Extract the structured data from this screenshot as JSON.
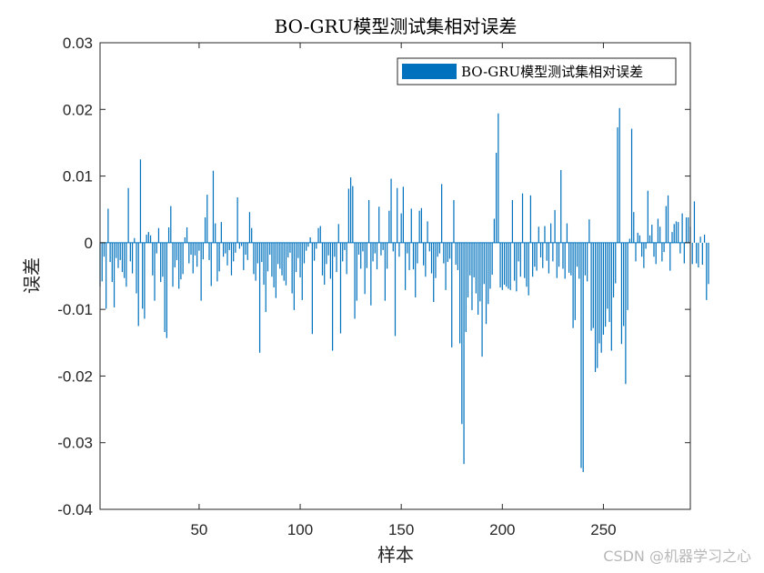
{
  "watermark": "CSDN @机器学习之心",
  "chart_data": {
    "type": "bar",
    "title": "BO-GRU模型测试集相对误差",
    "xlabel": "样本",
    "ylabel": "误差",
    "xlim": [
      1,
      293
    ],
    "ylim": [
      -0.04,
      0.03
    ],
    "xticks": [
      50,
      100,
      150,
      200,
      250
    ],
    "yticks": [
      -0.04,
      -0.03,
      -0.02,
      -0.01,
      0,
      0.01,
      0.02,
      0.03
    ],
    "ytick_labels": [
      "-0.04",
      "-0.03",
      "-0.02",
      "-0.01",
      "0",
      "0.01",
      "0.02",
      "0.03"
    ],
    "legend_position": "top-right",
    "grid": false,
    "color": "#0072BD",
    "series": [
      {
        "name": "BO-GRU模型测试集相对误差",
        "x_start": 1,
        "values": [
          -0.0066,
          -0.0058,
          -0.0021,
          -0.0099,
          0.0051,
          -0.0029,
          -0.0059,
          -0.0097,
          -0.0023,
          -0.0038,
          -0.0026,
          -0.0044,
          -0.0053,
          -0.0066,
          0.0082,
          -0.0028,
          -0.0046,
          0.0007,
          -0.0076,
          -0.0125,
          0.0125,
          -0.0099,
          -0.0114,
          0.0012,
          0.0016,
          0.0011,
          -0.0049,
          -0.0087,
          -0.0016,
          0.0022,
          -0.0059,
          -0.0051,
          -0.0134,
          -0.0143,
          0.0023,
          0.0055,
          -0.0066,
          -0.0037,
          -0.0026,
          -0.0069,
          -0.0055,
          -0.0047,
          0.0008,
          0.0023,
          -0.0031,
          -0.0018,
          -0.0046,
          -0.0019,
          -0.0036,
          -0.0012,
          -0.0087,
          -0.0025,
          0.0038,
          0.0072,
          -0.0026,
          -0.0065,
          0.0108,
          0.0029,
          -0.0058,
          -0.0043,
          0.0031,
          -0.0021,
          -0.0016,
          -0.0034,
          -0.0011,
          -0.0049,
          -0.0028,
          -0.0015,
          0.0068,
          -0.0009,
          -0.0005,
          -0.0041,
          -0.0018,
          -0.0026,
          0.0046,
          0.0022,
          -0.0047,
          -0.0057,
          -0.0031,
          -0.0165,
          -0.0029,
          -0.0063,
          -0.0104,
          -0.0043,
          -0.0018,
          -0.0051,
          -0.0067,
          -0.0083,
          -0.0032,
          -0.0039,
          -0.0049,
          -0.0057,
          -0.0064,
          -0.0022,
          -0.0015,
          -0.0076,
          -0.0101,
          -0.0044,
          -0.0023,
          -0.0052,
          -0.0086,
          -0.0031,
          -0.0012,
          -0.0006,
          0.0008,
          -0.0137,
          -0.0027,
          -0.0009,
          0.0022,
          0.0025,
          -0.0049,
          -0.0063,
          -0.0032,
          -0.0019,
          -0.0054,
          -0.0162,
          -0.0021,
          -0.0044,
          0.0028,
          -0.0136,
          -0.0028,
          -0.0011,
          -0.0047,
          0.0081,
          0.0098,
          0.0085,
          -0.0114,
          -0.0087,
          -0.0018,
          -0.0039,
          -0.0013,
          -0.0077,
          -0.0038,
          0.0064,
          -0.0094,
          -0.0028,
          -0.0016,
          -0.004,
          0.0054,
          -0.0019,
          -0.0011,
          -0.0087,
          -0.0039,
          0.0048,
          0.0096,
          -0.0013,
          -0.014,
          0.0082,
          -0.0021,
          0.0044,
          0.0084,
          -0.0071,
          -0.0016,
          -0.0041,
          0.0051,
          -0.004,
          -0.0082,
          -0.0031,
          0.0048,
          0.0052,
          -0.0034,
          -0.0051,
          0.0032,
          -0.0013,
          -0.0046,
          -0.0089,
          -0.0053,
          -0.0021,
          -0.0016,
          0.0088,
          -0.0031,
          -0.0071,
          -0.0029,
          -0.0024,
          -0.0157,
          0.0064,
          -0.0033,
          -0.0041,
          -0.0151,
          -0.0272,
          -0.0332,
          -0.0134,
          -0.0082,
          -0.0049,
          -0.0101,
          -0.0052,
          -0.0076,
          -0.0108,
          -0.0088,
          -0.0171,
          -0.0062,
          -0.0122,
          -0.0092,
          -0.0069,
          -0.0048,
          0.0036,
          0.0135,
          0.0194,
          -0.0067,
          -0.0071,
          -0.0063,
          -0.0066,
          -0.0069,
          -0.0071,
          0.0064,
          -0.0057,
          -0.0073,
          -0.0028,
          -0.0051,
          0.0074,
          -0.0053,
          -0.0066,
          -0.0079,
          0.0071,
          -0.0051,
          -0.0036,
          -0.0042,
          0.0024,
          -0.0022,
          -0.0038,
          0.0025,
          -0.0027,
          -0.0046,
          0.0029,
          -0.0028,
          0.0049,
          -0.0053,
          -0.0036,
          0.0109,
          -0.0039,
          -0.0054,
          0.0029,
          -0.0045,
          -0.0049,
          -0.0128,
          -0.0116,
          -0.0036,
          -0.0054,
          -0.0338,
          -0.0344,
          -0.0049,
          -0.0058,
          0.0035,
          -0.0132,
          -0.0128,
          -0.0194,
          -0.0188,
          -0.0151,
          -0.0165,
          -0.0138,
          -0.0126,
          -0.0099,
          -0.0119,
          -0.0162,
          -0.0082,
          -0.0061,
          0.0173,
          0.0202,
          -0.0152,
          -0.0125,
          -0.0212,
          -0.0101,
          0.0006,
          0.0171,
          0.0046,
          -0.0028,
          0.0015,
          0.0011,
          -0.0021,
          -0.0038,
          -0.0009,
          0.0078,
          0.0011,
          0.0027,
          -0.0021,
          -0.0032,
          0.0036,
          0.0024,
          -0.0028,
          -0.0014,
          0.0055,
          0.0071,
          -0.0042,
          0.0016,
          0.0028,
          0.0032,
          0.0031,
          -0.0016,
          0.0044,
          -0.0031,
          0.0038,
          0.0038,
          0.0024,
          -0.0032,
          0.0062,
          -0.0031,
          -0.0037,
          0.0009,
          -0.0033,
          0.0012,
          -0.0086,
          -0.0062
        ]
      }
    ]
  }
}
